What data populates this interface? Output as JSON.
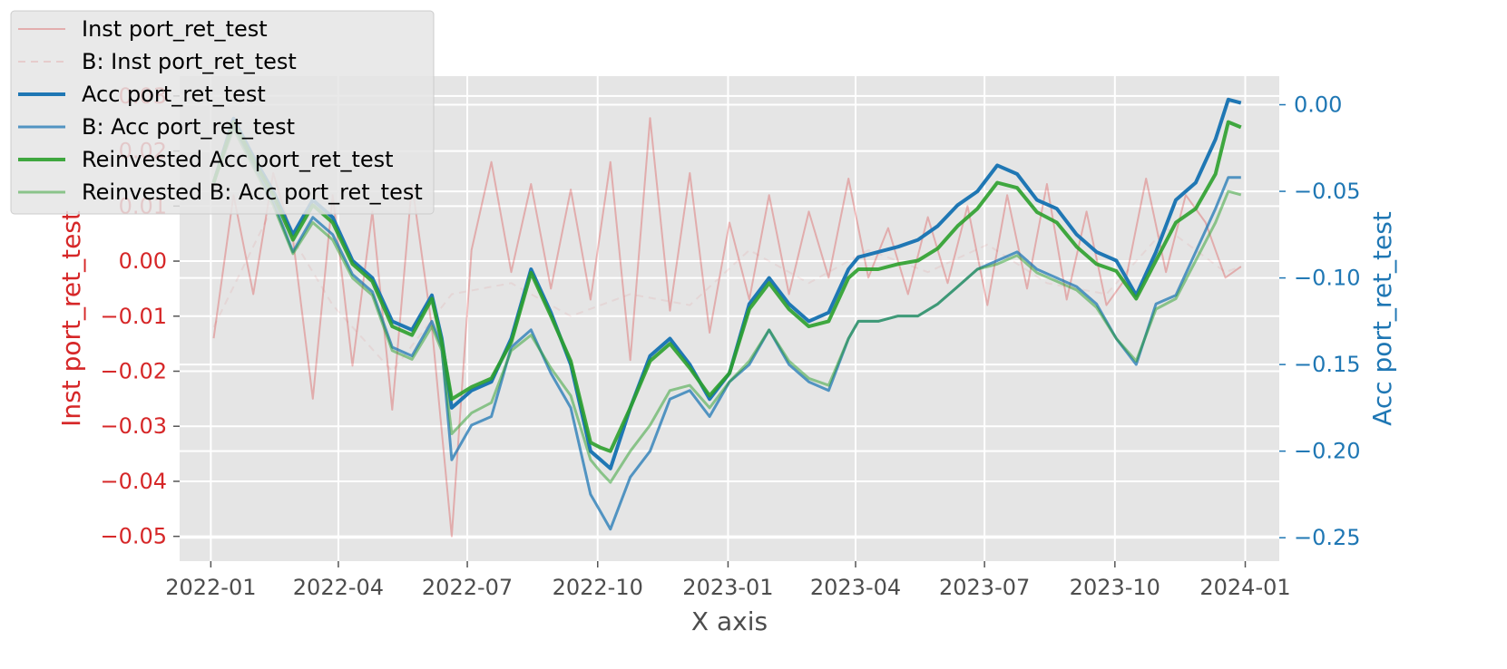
{
  "chart_data": {
    "type": "line",
    "xlabel": "X axis",
    "y1label": "Inst port_ret_test",
    "y2label": "Acc port_ret_test",
    "x_ticks": [
      "2022-01",
      "2022-04",
      "2022-07",
      "2022-10",
      "2023-01",
      "2023-04",
      "2023-07",
      "2023-10",
      "2024-01"
    ],
    "y1_ticks": [
      "−0.05",
      "−0.04",
      "−0.03",
      "−0.02",
      "−0.01",
      "0.00",
      "0.01",
      "0.02",
      "0.03"
    ],
    "y2_ticks": [
      "−0.25",
      "−0.20",
      "−0.15",
      "−0.10",
      "−0.05",
      "0.00"
    ],
    "x_range": [
      "2021-12-10",
      "2024-01-25"
    ],
    "y1_range": [
      -0.0545,
      0.0336
    ],
    "y2_range": [
      -0.2635,
      0.0165
    ],
    "grid": true,
    "legend_position": "top-left",
    "colors": {
      "background": "#e5e5e5",
      "grid": "#ffffff",
      "inst": "#d62728",
      "acc": "#1f77b4",
      "reinvested": "#2ca02c"
    },
    "legend": [
      "Inst port_ret_test",
      "B: Inst port_ret_test",
      "Acc port_ret_test",
      "B: Acc port_ret_test",
      "Reinvested Acc port_ret_test",
      "Reinvested B: Acc port_ret_test"
    ],
    "series": [
      {
        "name": "Inst port_ret_test",
        "axis": "left",
        "x": [
          "2022-01-03",
          "2022-01-17",
          "2022-01-31",
          "2022-02-14",
          "2022-02-28",
          "2022-03-14",
          "2022-03-28",
          "2022-04-11",
          "2022-04-25",
          "2022-05-09",
          "2022-05-23",
          "2022-06-06",
          "2022-06-20",
          "2022-07-04",
          "2022-07-18",
          "2022-08-01",
          "2022-08-15",
          "2022-08-29",
          "2022-09-12",
          "2022-09-26",
          "2022-10-10",
          "2022-10-24",
          "2022-11-07",
          "2022-11-21",
          "2022-12-05",
          "2022-12-19",
          "2023-01-02",
          "2023-01-16",
          "2023-01-30",
          "2023-02-13",
          "2023-02-27",
          "2023-03-13",
          "2023-03-27",
          "2023-04-10",
          "2023-04-24",
          "2023-05-08",
          "2023-05-22",
          "2023-06-05",
          "2023-06-19",
          "2023-07-03",
          "2023-07-17",
          "2023-07-31",
          "2023-08-14",
          "2023-08-28",
          "2023-09-11",
          "2023-09-25",
          "2023-10-09",
          "2023-10-23",
          "2023-11-06",
          "2023-11-20",
          "2023-12-04",
          "2023-12-18",
          "2023-12-29"
        ],
        "y": [
          -0.014,
          0.012,
          -0.006,
          0.016,
          0.004,
          -0.025,
          0.012,
          -0.019,
          0.009,
          -0.027,
          0.014,
          -0.012,
          -0.05,
          0.002,
          0.018,
          -0.002,
          0.014,
          -0.005,
          0.013,
          -0.007,
          0.018,
          -0.018,
          0.026,
          -0.009,
          0.016,
          -0.013,
          0.007,
          -0.007,
          0.012,
          -0.006,
          0.009,
          -0.003,
          0.015,
          -0.003,
          0.006,
          -0.006,
          0.008,
          -0.004,
          0.01,
          -0.008,
          0.012,
          -0.005,
          0.014,
          -0.007,
          0.009,
          -0.008,
          -0.003,
          0.015,
          -0.002,
          0.012,
          0.007,
          -0.003,
          -0.001
        ]
      },
      {
        "name": "B: Inst port_ret_test",
        "axis": "left",
        "x": [
          "2022-01-03",
          "2022-02-14",
          "2022-03-28",
          "2022-05-09",
          "2022-06-20",
          "2022-08-01",
          "2022-09-12",
          "2022-10-24",
          "2022-12-05",
          "2023-01-16",
          "2023-02-27",
          "2023-04-10",
          "2023-05-22",
          "2023-07-03",
          "2023-08-14",
          "2023-09-25",
          "2023-11-06",
          "2023-12-18",
          "2023-12-29"
        ],
        "y": [
          -0.012,
          0.01,
          -0.008,
          -0.02,
          -0.006,
          -0.004,
          -0.01,
          -0.006,
          -0.008,
          0.002,
          -0.004,
          0.002,
          -0.002,
          0.003,
          -0.004,
          -0.006,
          0.006,
          -0.002,
          -0.001
        ]
      },
      {
        "name": "Acc port_ret_test",
        "axis": "right",
        "x": [
          "2022-01-03",
          "2022-01-17",
          "2022-01-31",
          "2022-02-14",
          "2022-02-28",
          "2022-03-14",
          "2022-03-28",
          "2022-04-11",
          "2022-04-25",
          "2022-05-09",
          "2022-05-23",
          "2022-06-06",
          "2022-06-13",
          "2022-06-20",
          "2022-07-04",
          "2022-07-18",
          "2022-08-01",
          "2022-08-15",
          "2022-08-29",
          "2022-09-12",
          "2022-09-26",
          "2022-10-03",
          "2022-10-10",
          "2022-10-24",
          "2022-11-07",
          "2022-11-21",
          "2022-12-05",
          "2022-12-19",
          "2023-01-02",
          "2023-01-16",
          "2023-01-30",
          "2023-02-13",
          "2023-02-27",
          "2023-03-13",
          "2023-03-27",
          "2023-04-03",
          "2023-04-17",
          "2023-05-01",
          "2023-05-15",
          "2023-05-29",
          "2023-06-12",
          "2023-06-26",
          "2023-07-10",
          "2023-07-24",
          "2023-08-07",
          "2023-08-21",
          "2023-09-04",
          "2023-09-18",
          "2023-10-02",
          "2023-10-16",
          "2023-10-30",
          "2023-11-13",
          "2023-11-27",
          "2023-12-11",
          "2023-12-20",
          "2023-12-29"
        ],
        "y": [
          -0.045,
          -0.008,
          -0.03,
          -0.05,
          -0.075,
          -0.055,
          -0.065,
          -0.09,
          -0.1,
          -0.125,
          -0.13,
          -0.11,
          -0.135,
          -0.175,
          -0.165,
          -0.16,
          -0.135,
          -0.095,
          -0.12,
          -0.15,
          -0.2,
          -0.205,
          -0.21,
          -0.175,
          -0.145,
          -0.135,
          -0.15,
          -0.17,
          -0.155,
          -0.115,
          -0.1,
          -0.115,
          -0.125,
          -0.12,
          -0.095,
          -0.088,
          -0.085,
          -0.082,
          -0.078,
          -0.07,
          -0.058,
          -0.05,
          -0.035,
          -0.04,
          -0.055,
          -0.06,
          -0.075,
          -0.085,
          -0.09,
          -0.11,
          -0.085,
          -0.055,
          -0.045,
          -0.02,
          0.003,
          0.001
        ]
      },
      {
        "name": "B: Acc port_ret_test",
        "axis": "right",
        "x": [
          "2022-01-03",
          "2022-01-17",
          "2022-01-31",
          "2022-02-14",
          "2022-02-28",
          "2022-03-14",
          "2022-03-28",
          "2022-04-11",
          "2022-04-25",
          "2022-05-09",
          "2022-05-23",
          "2022-06-06",
          "2022-06-13",
          "2022-06-20",
          "2022-07-04",
          "2022-07-18",
          "2022-08-01",
          "2022-08-15",
          "2022-08-29",
          "2022-09-12",
          "2022-09-26",
          "2022-10-03",
          "2022-10-10",
          "2022-10-24",
          "2022-11-07",
          "2022-11-21",
          "2022-12-05",
          "2022-12-19",
          "2023-01-02",
          "2023-01-16",
          "2023-01-30",
          "2023-02-13",
          "2023-02-27",
          "2023-03-13",
          "2023-03-27",
          "2023-04-03",
          "2023-04-17",
          "2023-05-01",
          "2023-05-15",
          "2023-05-29",
          "2023-06-12",
          "2023-06-26",
          "2023-07-10",
          "2023-07-24",
          "2023-08-07",
          "2023-08-21",
          "2023-09-04",
          "2023-09-18",
          "2023-10-02",
          "2023-10-16",
          "2023-10-30",
          "2023-11-13",
          "2023-11-27",
          "2023-12-11",
          "2023-12-20",
          "2023-12-29"
        ],
        "y": [
          -0.045,
          -0.012,
          -0.034,
          -0.056,
          -0.085,
          -0.065,
          -0.075,
          -0.098,
          -0.108,
          -0.14,
          -0.145,
          -0.125,
          -0.14,
          -0.205,
          -0.185,
          -0.18,
          -0.14,
          -0.13,
          -0.155,
          -0.175,
          -0.225,
          -0.235,
          -0.245,
          -0.215,
          -0.2,
          -0.17,
          -0.165,
          -0.18,
          -0.16,
          -0.15,
          -0.13,
          -0.15,
          -0.16,
          -0.165,
          -0.135,
          -0.125,
          -0.125,
          -0.122,
          -0.122,
          -0.115,
          -0.105,
          -0.095,
          -0.09,
          -0.085,
          -0.095,
          -0.1,
          -0.105,
          -0.115,
          -0.135,
          -0.15,
          -0.115,
          -0.11,
          -0.085,
          -0.06,
          -0.042,
          -0.042
        ]
      },
      {
        "name": "Reinvested Acc port_ret_test",
        "axis": "right",
        "x": [
          "2022-01-03",
          "2022-01-17",
          "2022-01-31",
          "2022-02-14",
          "2022-02-28",
          "2022-03-14",
          "2022-03-28",
          "2022-04-11",
          "2022-04-25",
          "2022-05-09",
          "2022-05-23",
          "2022-06-06",
          "2022-06-13",
          "2022-06-20",
          "2022-07-04",
          "2022-07-18",
          "2022-08-01",
          "2022-08-15",
          "2022-08-29",
          "2022-09-12",
          "2022-09-26",
          "2022-10-03",
          "2022-10-10",
          "2022-10-24",
          "2022-11-07",
          "2022-11-21",
          "2022-12-05",
          "2022-12-19",
          "2023-01-02",
          "2023-01-16",
          "2023-01-30",
          "2023-02-13",
          "2023-02-27",
          "2023-03-13",
          "2023-03-27",
          "2023-04-03",
          "2023-04-17",
          "2023-05-01",
          "2023-05-15",
          "2023-05-29",
          "2023-06-12",
          "2023-06-26",
          "2023-07-10",
          "2023-07-24",
          "2023-08-07",
          "2023-08-21",
          "2023-09-04",
          "2023-09-18",
          "2023-10-02",
          "2023-10-16",
          "2023-10-30",
          "2023-11-13",
          "2023-11-27",
          "2023-12-11",
          "2023-12-20",
          "2023-12-29"
        ],
        "y": [
          -0.045,
          -0.01,
          -0.032,
          -0.052,
          -0.078,
          -0.058,
          -0.068,
          -0.092,
          -0.102,
          -0.128,
          -0.133,
          -0.112,
          -0.137,
          -0.17,
          -0.163,
          -0.158,
          -0.137,
          -0.097,
          -0.122,
          -0.148,
          -0.195,
          -0.198,
          -0.2,
          -0.175,
          -0.148,
          -0.138,
          -0.152,
          -0.168,
          -0.155,
          -0.118,
          -0.103,
          -0.118,
          -0.128,
          -0.125,
          -0.1,
          -0.095,
          -0.095,
          -0.092,
          -0.09,
          -0.083,
          -0.07,
          -0.06,
          -0.045,
          -0.048,
          -0.062,
          -0.068,
          -0.082,
          -0.092,
          -0.096,
          -0.112,
          -0.09,
          -0.068,
          -0.06,
          -0.04,
          -0.01,
          -0.013
        ]
      },
      {
        "name": "Reinvested B: Acc port_ret_test",
        "axis": "right",
        "x": [
          "2022-01-03",
          "2022-01-17",
          "2022-01-31",
          "2022-02-14",
          "2022-02-28",
          "2022-03-14",
          "2022-03-28",
          "2022-04-11",
          "2022-04-25",
          "2022-05-09",
          "2022-05-23",
          "2022-06-06",
          "2022-06-13",
          "2022-06-20",
          "2022-07-04",
          "2022-07-18",
          "2022-08-01",
          "2022-08-15",
          "2022-08-29",
          "2022-09-12",
          "2022-09-26",
          "2022-10-03",
          "2022-10-10",
          "2022-10-24",
          "2022-11-07",
          "2022-11-21",
          "2022-12-05",
          "2022-12-19",
          "2023-01-02",
          "2023-01-16",
          "2023-01-30",
          "2023-02-13",
          "2023-02-27",
          "2023-03-13",
          "2023-03-27",
          "2023-04-03",
          "2023-04-17",
          "2023-05-01",
          "2023-05-15",
          "2023-05-29",
          "2023-06-12",
          "2023-06-26",
          "2023-07-10",
          "2023-07-24",
          "2023-08-07",
          "2023-08-21",
          "2023-09-04",
          "2023-09-18",
          "2023-10-02",
          "2023-10-16",
          "2023-10-30",
          "2023-11-13",
          "2023-11-27",
          "2023-12-11",
          "2023-12-20",
          "2023-12-29"
        ],
        "y": [
          -0.045,
          -0.014,
          -0.036,
          -0.058,
          -0.086,
          -0.068,
          -0.078,
          -0.1,
          -0.11,
          -0.142,
          -0.147,
          -0.128,
          -0.142,
          -0.19,
          -0.178,
          -0.172,
          -0.142,
          -0.133,
          -0.152,
          -0.168,
          -0.205,
          -0.212,
          -0.218,
          -0.2,
          -0.185,
          -0.165,
          -0.162,
          -0.175,
          -0.16,
          -0.148,
          -0.13,
          -0.148,
          -0.158,
          -0.162,
          -0.135,
          -0.125,
          -0.125,
          -0.122,
          -0.122,
          -0.115,
          -0.105,
          -0.095,
          -0.092,
          -0.087,
          -0.097,
          -0.102,
          -0.107,
          -0.117,
          -0.135,
          -0.148,
          -0.118,
          -0.112,
          -0.09,
          -0.068,
          -0.05,
          -0.052
        ]
      }
    ]
  }
}
